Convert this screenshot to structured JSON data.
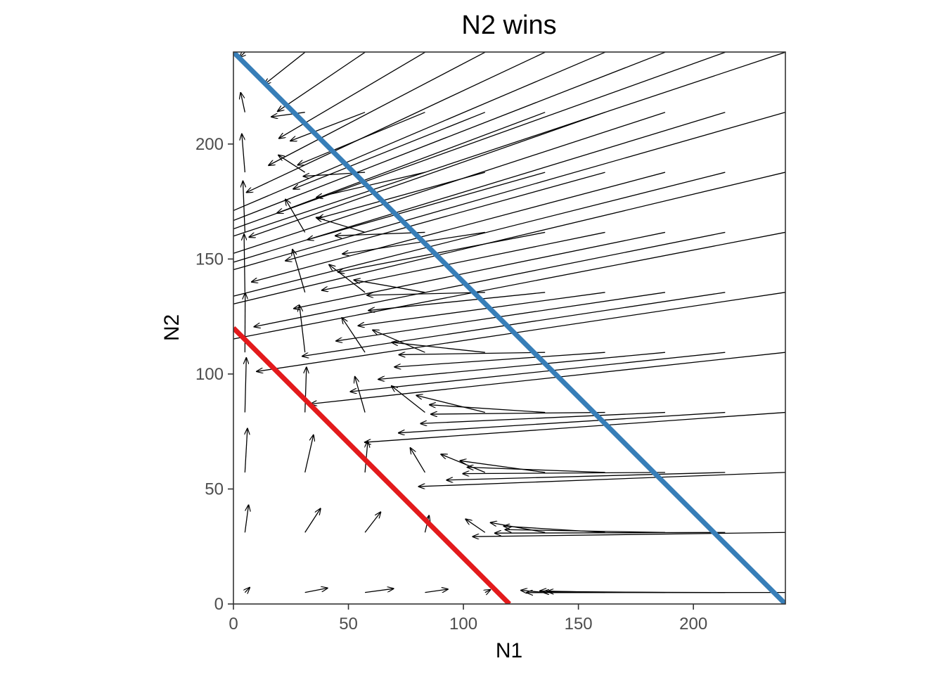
{
  "chart_data": {
    "type": "vector-field",
    "title": "N2 wins",
    "xlabel": "N1",
    "ylabel": "N2",
    "xlim": [
      0,
      240
    ],
    "ylim": [
      0,
      240
    ],
    "xticks": [
      0,
      50,
      100,
      150,
      200
    ],
    "yticks": [
      0,
      50,
      100,
      150,
      200
    ],
    "grid": false,
    "model": {
      "r1": 0.1,
      "r2": 0.1,
      "K1": 120,
      "K2": 240,
      "alpha12": 1.0,
      "alpha21": 1.0,
      "grid_start": 5,
      "grid_step": 26.1,
      "grid_count": 10,
      "arrow_time_scale": 0.45
    },
    "isoclines": [
      {
        "name": "N1 isocline",
        "color": "#e31a1c",
        "x": [
          0,
          120
        ],
        "y": [
          120,
          0
        ]
      },
      {
        "name": "N2 isocline",
        "color": "#377eb8",
        "x": [
          0,
          240
        ],
        "y": [
          240,
          0
        ]
      }
    ],
    "colors": {
      "arrow": "#000000",
      "frame": "#333333"
    }
  }
}
